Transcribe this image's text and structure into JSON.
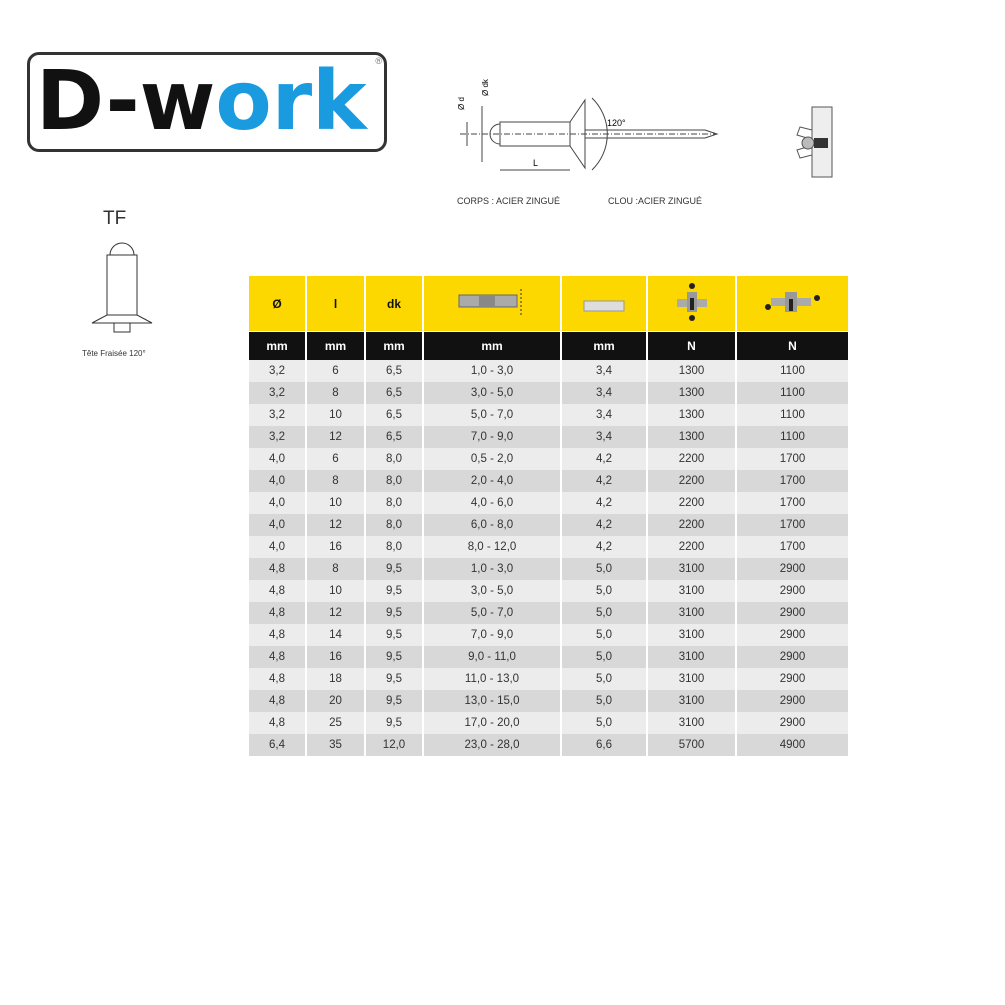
{
  "logo": {
    "text_dark": "D-w",
    "text_blue": "ork",
    "reg": "®"
  },
  "brand_colors": {
    "blue": "#1a9be0",
    "yellow": "#fcd800"
  },
  "diagram": {
    "dim_d": "Ø d",
    "dim_dk": "Ø dk",
    "angle": "120°",
    "length": "L",
    "body_label": "CORPS : ACIER ZINGUÉ",
    "mandrel_label": "CLOU :ACIER ZINGUÉ"
  },
  "head_type": {
    "code": "TF",
    "caption": "Tête Fraisée 120°"
  },
  "table": {
    "headers": [
      "Ø",
      "l",
      "dk",
      "",
      "",
      "",
      ""
    ],
    "header_icons": [
      "",
      "",
      "",
      "grip-range-icon",
      "hole-diameter-icon",
      "tensile-strength-icon",
      "shear-strength-icon"
    ],
    "units": [
      "mm",
      "mm",
      "mm",
      "mm",
      "mm",
      "N",
      "N"
    ],
    "rows": [
      [
        "3,2",
        "6",
        "6,5",
        "1,0 - 3,0",
        "3,4",
        "1300",
        "1100"
      ],
      [
        "3,2",
        "8",
        "6,5",
        "3,0 - 5,0",
        "3,4",
        "1300",
        "1100"
      ],
      [
        "3,2",
        "10",
        "6,5",
        "5,0 - 7,0",
        "3,4",
        "1300",
        "1100"
      ],
      [
        "3,2",
        "12",
        "6,5",
        "7,0 - 9,0",
        "3,4",
        "1300",
        "1100"
      ],
      [
        "4,0",
        "6",
        "8,0",
        "0,5 - 2,0",
        "4,2",
        "2200",
        "1700"
      ],
      [
        "4,0",
        "8",
        "8,0",
        "2,0 - 4,0",
        "4,2",
        "2200",
        "1700"
      ],
      [
        "4,0",
        "10",
        "8,0",
        "4,0 - 6,0",
        "4,2",
        "2200",
        "1700"
      ],
      [
        "4,0",
        "12",
        "8,0",
        "6,0 - 8,0",
        "4,2",
        "2200",
        "1700"
      ],
      [
        "4,0",
        "16",
        "8,0",
        "8,0 - 12,0",
        "4,2",
        "2200",
        "1700"
      ],
      [
        "4,8",
        "8",
        "9,5",
        "1,0 - 3,0",
        "5,0",
        "3100",
        "2900"
      ],
      [
        "4,8",
        "10",
        "9,5",
        "3,0 - 5,0",
        "5,0",
        "3100",
        "2900"
      ],
      [
        "4,8",
        "12",
        "9,5",
        "5,0 - 7,0",
        "5,0",
        "3100",
        "2900"
      ],
      [
        "4,8",
        "14",
        "9,5",
        "7,0 - 9,0",
        "5,0",
        "3100",
        "2900"
      ],
      [
        "4,8",
        "16",
        "9,5",
        "9,0 - 11,0",
        "5,0",
        "3100",
        "2900"
      ],
      [
        "4,8",
        "18",
        "9,5",
        "11,0 - 13,0",
        "5,0",
        "3100",
        "2900"
      ],
      [
        "4,8",
        "20",
        "9,5",
        "13,0 - 15,0",
        "5,0",
        "3100",
        "2900"
      ],
      [
        "4,8",
        "25",
        "9,5",
        "17,0 - 20,0",
        "5,0",
        "3100",
        "2900"
      ],
      [
        "6,4",
        "35",
        "12,0",
        "23,0 - 28,0",
        "6,6",
        "5700",
        "4900"
      ]
    ]
  }
}
